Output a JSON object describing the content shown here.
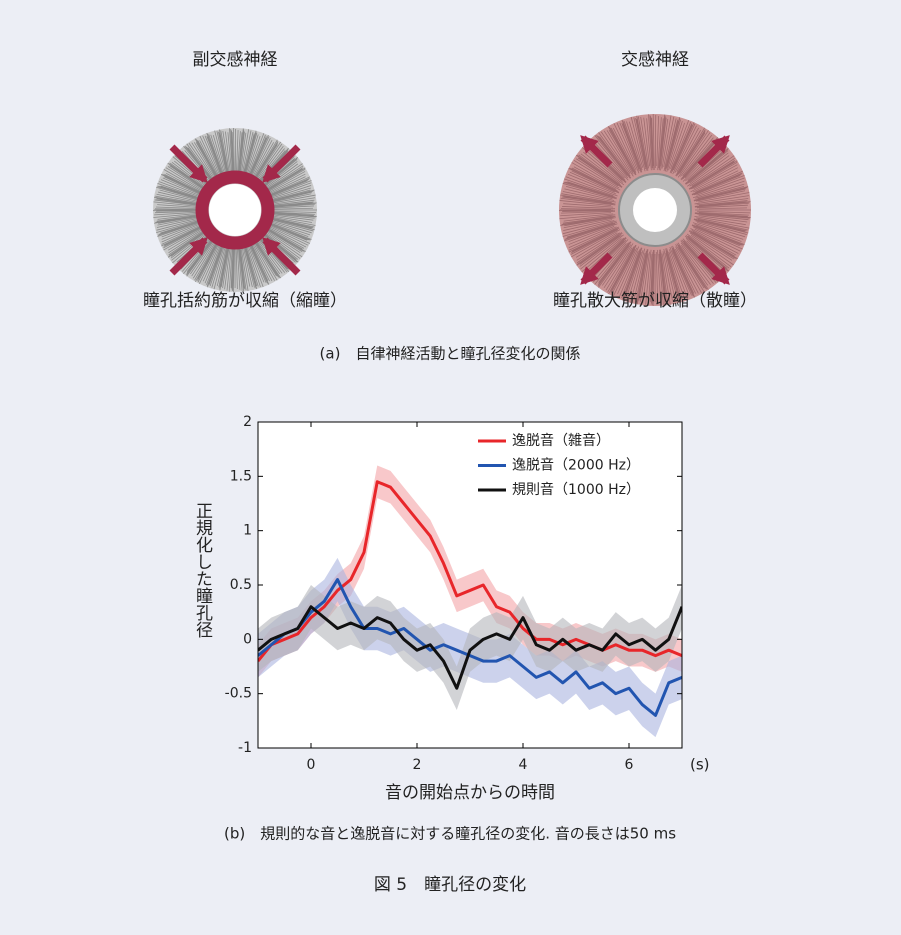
{
  "diagram": {
    "left_title": "副交感神経",
    "right_title": "交感神経",
    "left_caption": "瞳孔括約筋が収縮（縮瞳）",
    "right_caption": "瞳孔散大筋が収縮（散瞳）",
    "caption": "(a)　自律神経活動と瞳孔径変化の関係"
  },
  "chart_data": {
    "type": "line",
    "y_label": "正規化した瞳孔径",
    "x_label": "音の開始点からの時間",
    "x_unit": "(s)",
    "caption": "(b)　規則的な音と逸脱音に対する瞳孔径の変化. 音の長さは50 ms",
    "xlim": [
      -1,
      7
    ],
    "xticks": [
      0,
      2,
      4,
      6
    ],
    "ylim": [
      -1,
      2
    ],
    "yticks": [
      -1,
      -0.5,
      0,
      0.5,
      1,
      1.5,
      2
    ],
    "x": [
      -1,
      -0.75,
      -0.5,
      -0.25,
      0,
      0.25,
      0.5,
      0.75,
      1,
      1.25,
      1.5,
      1.75,
      2,
      2.25,
      2.5,
      2.75,
      3,
      3.25,
      3.5,
      3.75,
      4,
      4.25,
      4.5,
      4.75,
      5,
      5.25,
      5.5,
      5.75,
      6,
      6.25,
      6.5,
      6.75,
      7
    ],
    "legend": "upper right",
    "series": [
      {
        "name": "逸脱音（雑音）",
        "color": "#e8262a",
        "band_color": "#f4a3a6",
        "error": 0.15,
        "values": [
          -0.2,
          -0.05,
          0,
          0.05,
          0.2,
          0.3,
          0.45,
          0.55,
          0.8,
          1.45,
          1.4,
          1.25,
          1.1,
          0.95,
          0.7,
          0.4,
          0.45,
          0.5,
          0.3,
          0.25,
          0.1,
          0,
          0,
          -0.05,
          0,
          -0.05,
          -0.1,
          -0.05,
          -0.1,
          -0.1,
          -0.15,
          -0.1,
          -0.15
        ]
      },
      {
        "name": "逸脱音（2000 Hz）",
        "color": "#2255b0",
        "band_color": "#aab4df",
        "error": 0.2,
        "values": [
          -0.15,
          -0.05,
          0.05,
          0.1,
          0.25,
          0.35,
          0.55,
          0.3,
          0.1,
          0.1,
          0.05,
          0.1,
          0,
          -0.1,
          -0.05,
          -0.1,
          -0.15,
          -0.2,
          -0.2,
          -0.15,
          -0.25,
          -0.35,
          -0.3,
          -0.4,
          -0.3,
          -0.45,
          -0.4,
          -0.5,
          -0.45,
          -0.6,
          -0.7,
          -0.4,
          -0.35
        ]
      },
      {
        "name": "規則音（1000 Hz）",
        "color": "#111111",
        "band_color": "#b4b6ba",
        "error": 0.2,
        "values": [
          -0.1,
          0,
          0.05,
          0.1,
          0.3,
          0.2,
          0.1,
          0.15,
          0.1,
          0.2,
          0.15,
          0,
          -0.1,
          -0.05,
          -0.2,
          -0.45,
          -0.1,
          0,
          0.05,
          0,
          0.2,
          -0.05,
          -0.1,
          0,
          -0.1,
          -0.05,
          -0.1,
          0.05,
          -0.05,
          0,
          -0.1,
          0,
          0.3
        ]
      }
    ]
  },
  "figure_caption": "図 5　瞳孔径の変化"
}
